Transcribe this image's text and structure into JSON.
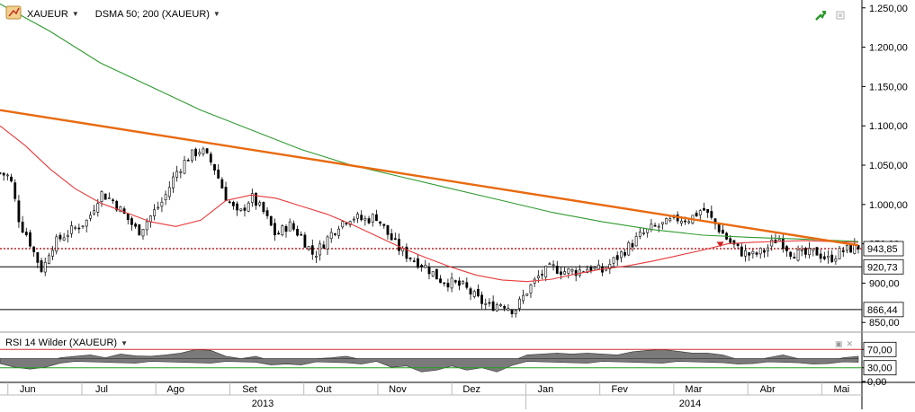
{
  "toolbar": {
    "symbol": "XAUEUR",
    "indicator": "DSMA 50; 200 (XAUEUR)"
  },
  "rsi_panel": {
    "label": "RSI 14 Wilder (XAUEUR)"
  },
  "colors": {
    "background": "#ffffff",
    "sma50": "#e83a3a",
    "sma200": "#2f9a2f",
    "trendline": "#e86a10",
    "candle_up": "#ffffff",
    "candle_down": "#000000",
    "rsi_fill": "#7a7a7a",
    "rsi_line_upper": "#d03030",
    "rsi_line_lower": "#20a020",
    "accent_badge": "#2a9a2a"
  },
  "chart_data": {
    "type": "candlestick",
    "title": "",
    "price_axis": {
      "ticks": [
        "1.250,00",
        "1.200,00",
        "1.150,00",
        "1.100,00",
        "1.050,00",
        "1.000,00",
        "950,00",
        "900,00",
        "850,00"
      ],
      "tick_values": [
        1250,
        1200,
        1150,
        1100,
        1050,
        1000,
        950,
        900,
        850
      ],
      "range": [
        840,
        1260
      ]
    },
    "x_axis": {
      "months": [
        "Jun",
        "Jul",
        "Ago",
        "Set",
        "Out",
        "Nov",
        "Dez",
        "Jan",
        "Fev",
        "Mar",
        "Abr",
        "Mai"
      ],
      "years": [
        "2013",
        "2014"
      ],
      "range_days": [
        0,
        342
      ]
    },
    "horizontal_lines": [
      {
        "label": "943,85",
        "value": 943.85,
        "style": "dotted-red"
      },
      {
        "label": "920,73",
        "value": 920.73,
        "style": "solid-black"
      },
      {
        "label": "866,44",
        "value": 866.44,
        "style": "solid-black"
      }
    ],
    "trendline": {
      "from": [
        0,
        1120
      ],
      "to": [
        342,
        948
      ]
    },
    "close_path": [
      [
        0,
        1040
      ],
      [
        4,
        1035
      ],
      [
        8,
        975
      ],
      [
        11,
        960
      ],
      [
        14,
        935
      ],
      [
        17,
        915
      ],
      [
        20,
        945
      ],
      [
        25,
        960
      ],
      [
        30,
        970
      ],
      [
        35,
        980
      ],
      [
        40,
        1015
      ],
      [
        45,
        1005
      ],
      [
        50,
        985
      ],
      [
        55,
        965
      ],
      [
        60,
        985
      ],
      [
        65,
        1005
      ],
      [
        70,
        1040
      ],
      [
        75,
        1060
      ],
      [
        80,
        1070
      ],
      [
        85,
        1050
      ],
      [
        90,
        1010
      ],
      [
        95,
        985
      ],
      [
        100,
        1010
      ],
      [
        105,
        990
      ],
      [
        110,
        960
      ],
      [
        115,
        975
      ],
      [
        120,
        960
      ],
      [
        125,
        935
      ],
      [
        130,
        955
      ],
      [
        135,
        975
      ],
      [
        140,
        985
      ],
      [
        145,
        980
      ],
      [
        150,
        985
      ],
      [
        155,
        960
      ],
      [
        160,
        940
      ],
      [
        165,
        930
      ],
      [
        170,
        920
      ],
      [
        175,
        905
      ],
      [
        180,
        900
      ],
      [
        185,
        895
      ],
      [
        190,
        880
      ],
      [
        195,
        870
      ],
      [
        200,
        875
      ],
      [
        205,
        865
      ],
      [
        210,
        890
      ],
      [
        215,
        910
      ],
      [
        220,
        920
      ],
      [
        225,
        915
      ],
      [
        230,
        915
      ],
      [
        235,
        920
      ],
      [
        240,
        915
      ],
      [
        245,
        930
      ],
      [
        250,
        945
      ],
      [
        255,
        960
      ],
      [
        260,
        970
      ],
      [
        265,
        975
      ],
      [
        270,
        982
      ],
      [
        275,
        982
      ],
      [
        280,
        995
      ],
      [
        285,
        975
      ],
      [
        290,
        955
      ],
      [
        295,
        940
      ],
      [
        300,
        935
      ],
      [
        305,
        942
      ],
      [
        310,
        958
      ],
      [
        315,
        940
      ],
      [
        320,
        935
      ],
      [
        325,
        940
      ],
      [
        330,
        930
      ],
      [
        335,
        940
      ],
      [
        340,
        945
      ],
      [
        342,
        946
      ]
    ],
    "series": [
      {
        "points": [
          [
            0,
            1100
          ],
          [
            10,
            1075
          ],
          [
            20,
            1045
          ],
          [
            30,
            1020
          ],
          [
            40,
            1002
          ],
          [
            50,
            990
          ],
          [
            60,
            978
          ],
          [
            70,
            972
          ],
          [
            80,
            980
          ],
          [
            90,
            1005
          ],
          [
            100,
            1012
          ],
          [
            110,
            1008
          ],
          [
            120,
            998
          ],
          [
            130,
            988
          ],
          [
            140,
            975
          ],
          [
            150,
            960
          ],
          [
            160,
            945
          ],
          [
            170,
            932
          ],
          [
            180,
            920
          ],
          [
            190,
            910
          ],
          [
            200,
            904
          ],
          [
            210,
            902
          ],
          [
            220,
            905
          ],
          [
            230,
            912
          ],
          [
            240,
            918
          ],
          [
            250,
            922
          ],
          [
            260,
            928
          ],
          [
            270,
            935
          ],
          [
            280,
            942
          ],
          [
            290,
            950
          ],
          [
            300,
            952
          ],
          [
            310,
            953
          ],
          [
            320,
            954
          ],
          [
            330,
            953
          ],
          [
            342,
            952
          ]
        ]
      },
      {
        "points": [
          [
            0,
            1255
          ],
          [
            20,
            1220
          ],
          [
            40,
            1180
          ],
          [
            60,
            1150
          ],
          [
            80,
            1120
          ],
          [
            100,
            1095
          ],
          [
            120,
            1070
          ],
          [
            140,
            1050
          ],
          [
            160,
            1035
          ],
          [
            180,
            1020
          ],
          [
            200,
            1005
          ],
          [
            220,
            990
          ],
          [
            240,
            978
          ],
          [
            260,
            968
          ],
          [
            280,
            961
          ],
          [
            300,
            958
          ],
          [
            320,
            956
          ],
          [
            342,
            953
          ]
        ]
      }
    ],
    "rsi": {
      "ticks": [
        "70,00",
        "30,00",
        "0,00"
      ],
      "tick_values": [
        70,
        30,
        0
      ],
      "range": [
        0,
        100
      ],
      "levels": [
        70,
        30
      ],
      "values": [
        [
          0,
          45
        ],
        [
          6,
          38
        ],
        [
          12,
          35
        ],
        [
          18,
          40
        ],
        [
          24,
          52
        ],
        [
          30,
          55
        ],
        [
          36,
          58
        ],
        [
          42,
          52
        ],
        [
          48,
          60
        ],
        [
          54,
          56
        ],
        [
          60,
          55
        ],
        [
          66,
          58
        ],
        [
          72,
          62
        ],
        [
          78,
          70
        ],
        [
          84,
          68
        ],
        [
          90,
          55
        ],
        [
          96,
          50
        ],
        [
          102,
          55
        ],
        [
          108,
          45
        ],
        [
          114,
          48
        ],
        [
          120,
          42
        ],
        [
          126,
          50
        ],
        [
          132,
          52
        ],
        [
          138,
          55
        ],
        [
          144,
          48
        ],
        [
          150,
          50
        ],
        [
          156,
          38
        ],
        [
          162,
          42
        ],
        [
          168,
          30
        ],
        [
          174,
          35
        ],
        [
          180,
          40
        ],
        [
          186,
          32
        ],
        [
          192,
          38
        ],
        [
          198,
          30
        ],
        [
          204,
          45
        ],
        [
          210,
          58
        ],
        [
          216,
          60
        ],
        [
          222,
          62
        ],
        [
          228,
          60
        ],
        [
          234,
          62
        ],
        [
          240,
          60
        ],
        [
          246,
          58
        ],
        [
          252,
          65
        ],
        [
          258,
          68
        ],
        [
          264,
          70
        ],
        [
          270,
          66
        ],
        [
          276,
          62
        ],
        [
          282,
          62
        ],
        [
          288,
          58
        ],
        [
          294,
          48
        ],
        [
          300,
          45
        ],
        [
          306,
          52
        ],
        [
          312,
          58
        ],
        [
          318,
          50
        ],
        [
          324,
          48
        ],
        [
          330,
          45
        ],
        [
          336,
          52
        ],
        [
          342,
          55
        ]
      ]
    }
  }
}
